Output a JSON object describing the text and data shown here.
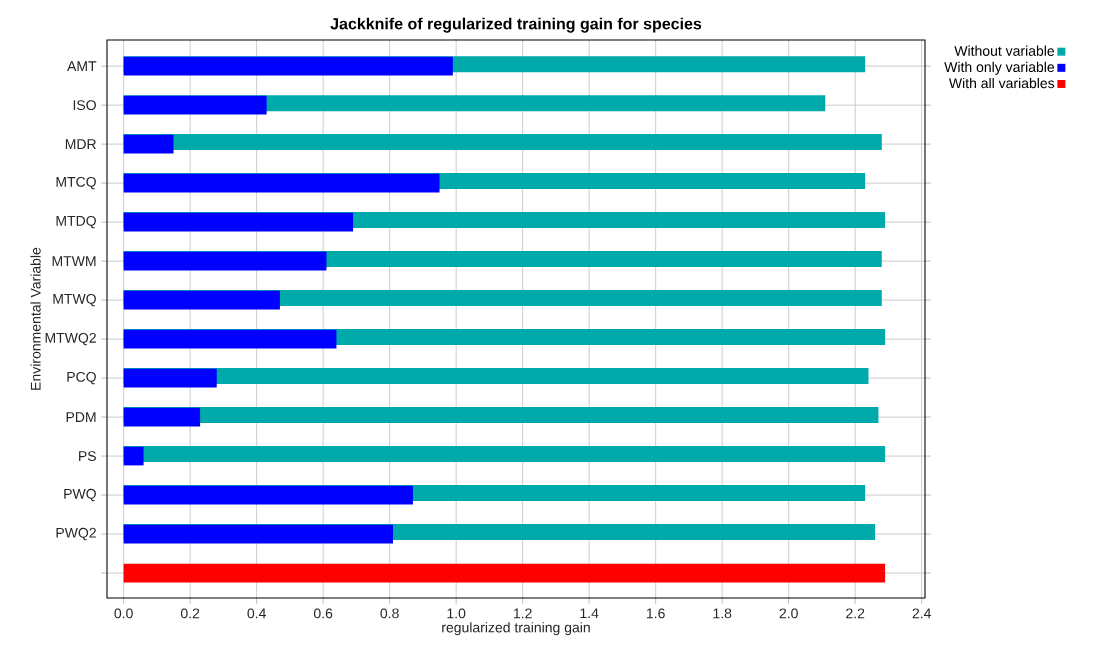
{
  "chart_data": {
    "type": "bar",
    "orientation": "horizontal",
    "title": "Jackknife of regularized training gain for species",
    "xlabel": "regularized training gain",
    "ylabel": "Environmental Variable",
    "categories": [
      "AMT",
      "ISO",
      "MDR",
      "MTCQ",
      "MTDQ",
      "MTWM",
      "MTWQ",
      "MTWQ2",
      "PCQ",
      "PDM",
      "PS",
      "PWQ",
      "PWQ2",
      null
    ],
    "series": [
      {
        "name": "Without variable",
        "color": "#00aaaa",
        "values": [
          2.23,
          2.11,
          2.28,
          2.23,
          2.29,
          2.28,
          2.28,
          2.29,
          2.24,
          2.27,
          2.29,
          2.23,
          2.26,
          null
        ]
      },
      {
        "name": "With only variable",
        "color": "#0000ff",
        "values": [
          0.99,
          0.43,
          0.15,
          0.95,
          0.69,
          0.61,
          0.47,
          0.64,
          0.28,
          0.23,
          0.06,
          0.87,
          0.81,
          null
        ]
      },
      {
        "name": "With all variables",
        "color": "#ff0000",
        "values": [
          null,
          null,
          null,
          null,
          null,
          null,
          null,
          null,
          null,
          null,
          null,
          null,
          null,
          2.29
        ]
      }
    ],
    "xlim": [
      -0.05,
      2.41
    ],
    "xticks": [
      {
        "value": 0,
        "label": "0.0"
      },
      {
        "value": 0.2,
        "label": "0.2"
      },
      {
        "value": 0.4,
        "label": "0.4"
      },
      {
        "value": 0.6,
        "label": "0.6"
      },
      {
        "value": 0.8,
        "label": "0.8"
      },
      {
        "value": 1.0,
        "label": "1.0"
      },
      {
        "value": 1.2,
        "label": "1.2"
      },
      {
        "value": 1.4,
        "label": "1.4"
      },
      {
        "value": 1.6,
        "label": "1.6"
      },
      {
        "value": 1.8,
        "label": "1.8"
      },
      {
        "value": 2.0,
        "label": "2.0"
      },
      {
        "value": 2.2,
        "label": "2.2"
      },
      {
        "value": 2.4,
        "label": "2.4"
      }
    ],
    "grid": true,
    "legend": "top right"
  }
}
